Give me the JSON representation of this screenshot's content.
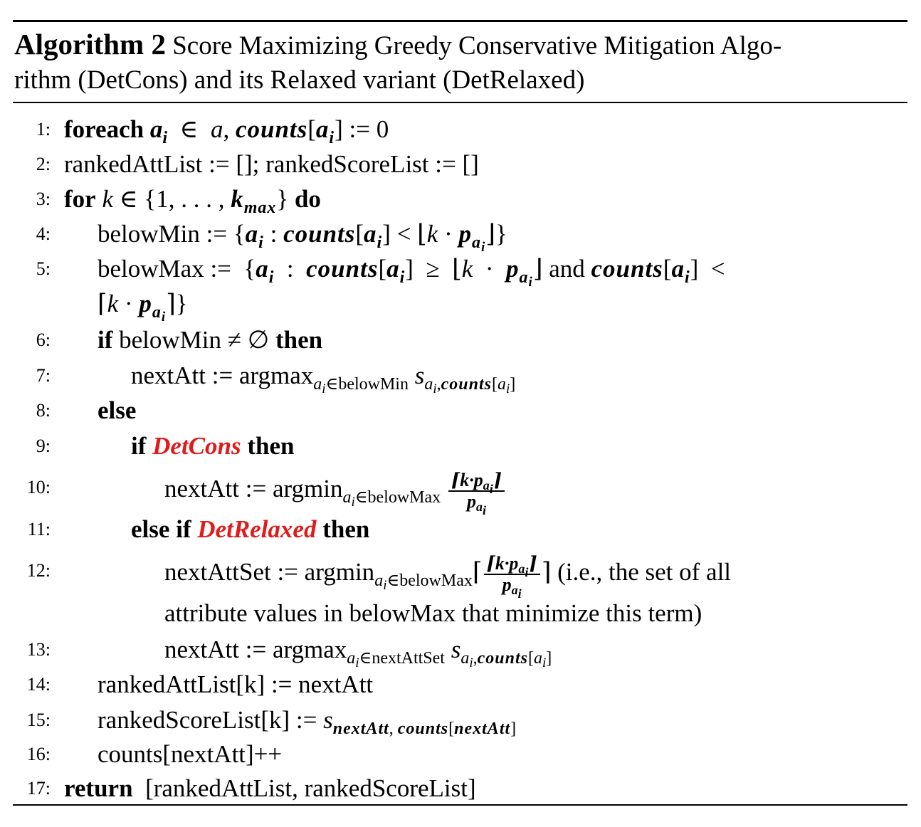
{
  "caption": {
    "label": "Algorithm 2",
    "text_line1": "Score Maximizing Greedy Conservative Mitigation Algo-",
    "text_line2": "rithm (DetCons) and its Relaxed variant (DetRelaxed)"
  },
  "lines": [
    {
      "num": "1:",
      "kw": "foreach",
      "rest": "counts[a_i] := 0"
    },
    {
      "num": "2:",
      "text": "rankedAttList := []; rankedScoreList := []"
    },
    {
      "num": "3:",
      "kw": "for",
      "kw2": "do"
    },
    {
      "num": "4:",
      "text": "belowMin :="
    },
    {
      "num": "5:",
      "text": "belowMax :=",
      "and": "and"
    },
    {
      "num": "6:",
      "kw": "if",
      "text": "belowMin ≠ ∅",
      "kw2": "then"
    },
    {
      "num": "7:",
      "text": "nextAtt := argmax",
      "subtext": "belowMin"
    },
    {
      "num": "8:",
      "kw": "else"
    },
    {
      "num": "9:",
      "kw": "if",
      "red": "DetCons",
      "kw2": "then"
    },
    {
      "num": "10:",
      "text": "nextAtt := argmin",
      "subtext": "belowMax"
    },
    {
      "num": "11:",
      "kw": "else if",
      "red": "DetRelaxed",
      "kw2": "then"
    },
    {
      "num": "12:",
      "text": "nextAttSet := argmin",
      "subtext": "belowMax",
      "note": "(i.e., the set of all",
      "note2": "attribute values in belowMax that minimize this term)"
    },
    {
      "num": "13:",
      "text": "nextAtt := argmax",
      "subtext": "nextAttSet"
    },
    {
      "num": "14:",
      "text": "rankedAttList[k] := nextAtt"
    },
    {
      "num": "15:",
      "text": "rankedScoreList[k] :="
    },
    {
      "num": "16:",
      "text": "counts[nextAtt]++"
    },
    {
      "num": "17:",
      "kw": "return",
      "text": "[rankedAttList, rankedScoreList]"
    }
  ]
}
